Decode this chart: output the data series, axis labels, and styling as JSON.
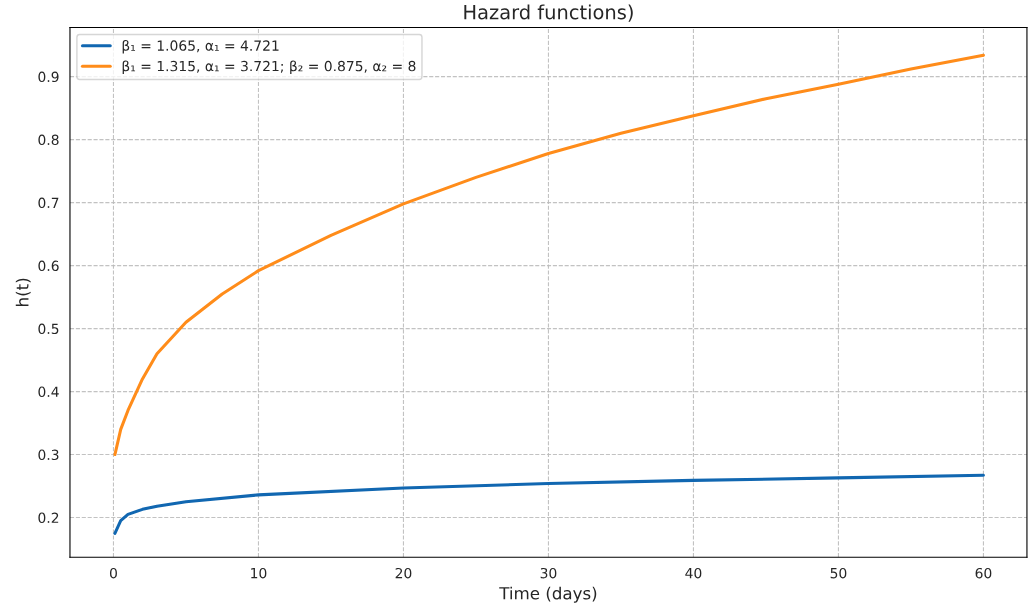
{
  "chart_data": {
    "type": "line",
    "title": "Hazard functions)",
    "xlabel": "Time (days)",
    "ylabel": "h(t)",
    "xlim": [
      -3,
      63
    ],
    "ylim": [
      0.137,
      0.978
    ],
    "xticks": [
      0,
      10,
      20,
      30,
      40,
      50,
      60
    ],
    "yticks": [
      0.2,
      0.3,
      0.4,
      0.5,
      0.6,
      0.7,
      0.8,
      0.9
    ],
    "grid": true,
    "legend": "top left",
    "marker": "none",
    "line_style": "solid",
    "series": [
      {
        "name": "β₁ = 1.065, α₁ = 4.721",
        "color": "#1167b1",
        "x": [
          0.1,
          0.5,
          1,
          2,
          3,
          5,
          10,
          20,
          30,
          40,
          50,
          60
        ],
        "values": [
          0.175,
          0.195,
          0.205,
          0.213,
          0.218,
          0.225,
          0.236,
          0.247,
          0.254,
          0.259,
          0.263,
          0.267
        ]
      },
      {
        "name": "β₁ = 1.315, α₁ = 3.721; β₂ = 0.875, α₂ = 8",
        "color": "#ff8c1a",
        "x": [
          0.1,
          0.5,
          1,
          2,
          3,
          5,
          7.5,
          10,
          15,
          20,
          25,
          30,
          35,
          40,
          45,
          50,
          55,
          60
        ],
        "values": [
          0.3,
          0.34,
          0.37,
          0.42,
          0.46,
          0.51,
          0.555,
          0.592,
          0.648,
          0.698,
          0.74,
          0.778,
          0.81,
          0.838,
          0.865,
          0.888,
          0.912,
          0.934
        ]
      }
    ]
  }
}
